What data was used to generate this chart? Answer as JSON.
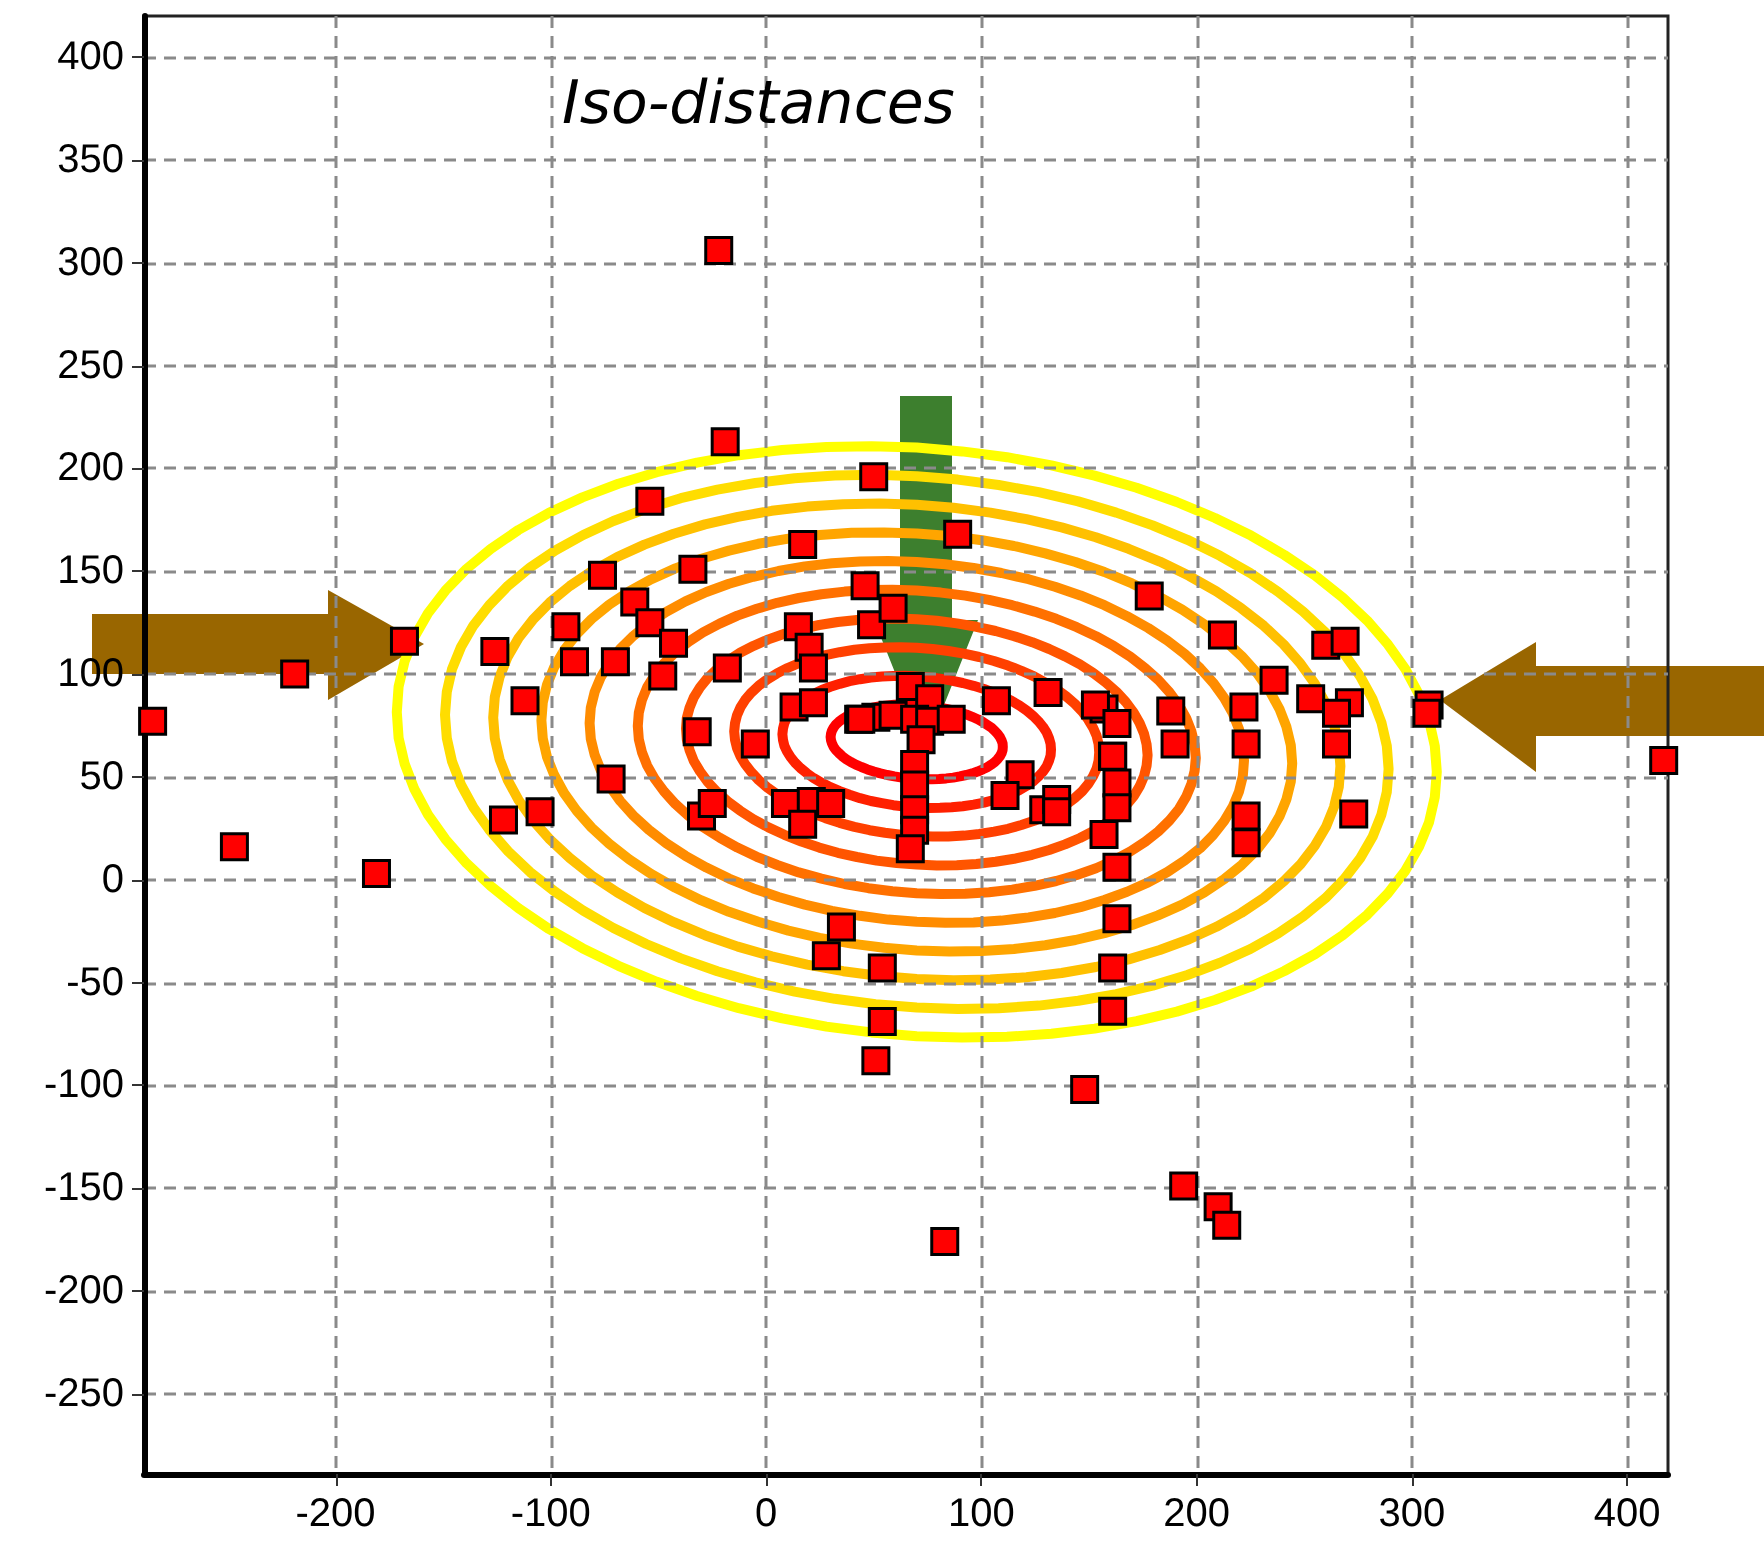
{
  "chart_data": {
    "type": "scatter",
    "title": "Iso-distances",
    "xlim": [
      -289,
      419
    ],
    "ylim": [
      -289,
      420
    ],
    "xticks": [
      -200,
      -100,
      0,
      100,
      200,
      300,
      400
    ],
    "yticks": [
      -250,
      -200,
      -150,
      -100,
      -50,
      0,
      50,
      100,
      150,
      200,
      250,
      300,
      350,
      400
    ],
    "grid": true,
    "marker": "square",
    "series": [
      {
        "color": "#ff0000",
        "x": [
          -22,
          -19,
          50,
          -54,
          17,
          -76,
          -34,
          46,
          -61,
          -93,
          -54,
          -43,
          15,
          20,
          49,
          59,
          -168,
          -219,
          -126,
          -89,
          -70,
          -48,
          -18,
          22,
          -112,
          -285,
          13,
          22,
          -32,
          -5,
          43,
          51,
          -72,
          -247,
          -181,
          -122,
          -105,
          -30,
          -25,
          9,
          21,
          30,
          17,
          35,
          28,
          54,
          54,
          51,
          89,
          178,
          212,
          260,
          269,
          236,
          253,
          271,
          265,
          308,
          307,
          222,
          188,
          190,
          223,
          265,
          157,
          161,
          131,
          107,
          118,
          417,
          67,
          76,
          44,
          59,
          69,
          76,
          86,
          72,
          69,
          69,
          69,
          69,
          67,
          111,
          129,
          135,
          135,
          153,
          163,
          161,
          163,
          163,
          157,
          163,
          163,
          161,
          161,
          148,
          223,
          223,
          273,
          194,
          210,
          214,
          83
        ],
        "values": [
          306,
          213,
          196,
          184,
          163,
          148,
          151,
          143,
          135,
          123,
          125,
          115,
          123,
          113,
          124,
          132,
          116,
          100,
          111,
          106,
          106,
          99,
          103,
          103,
          87,
          77,
          84,
          86,
          72,
          66,
          78,
          79,
          49,
          16,
          3,
          29,
          33,
          31,
          37,
          37,
          38,
          37,
          27,
          -23,
          -37,
          -43,
          -69,
          -88,
          168,
          138,
          119,
          114,
          116,
          97,
          88,
          86,
          81,
          85,
          81,
          84,
          82,
          66,
          66,
          66,
          83,
          60,
          91,
          87,
          51,
          58,
          94,
          88,
          78,
          80,
          78,
          77,
          78,
          68,
          56,
          46,
          34,
          24,
          15,
          41,
          34,
          39,
          33,
          85,
          76,
          60,
          47,
          35,
          22,
          6,
          -19,
          -43,
          -64,
          -102,
          31,
          18,
          32,
          -149,
          -159,
          -168,
          -176
        ]
      }
    ]
  }
}
